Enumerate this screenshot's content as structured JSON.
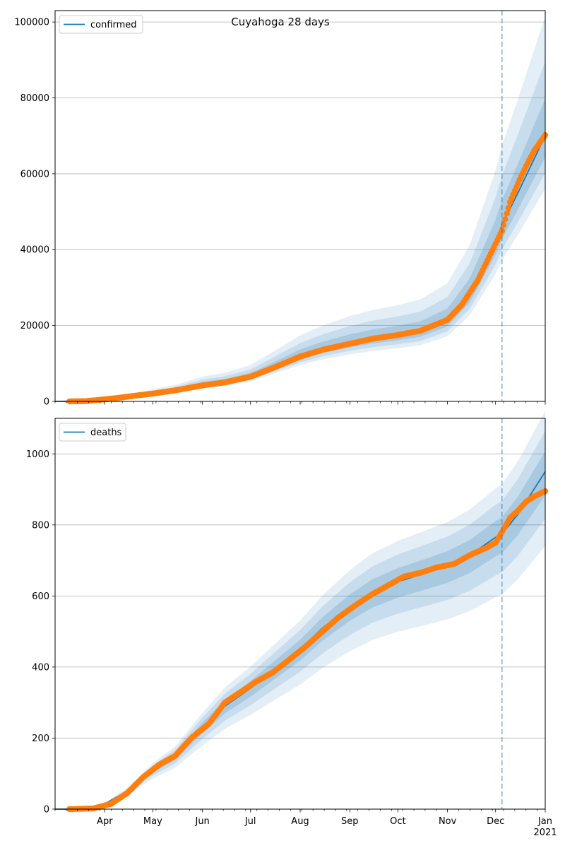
{
  "figure": {
    "title": "Cuyahoga 28 days"
  },
  "colors": {
    "line": "#1f77b4",
    "observed": "#ff7f0e",
    "band": "#1f77b4",
    "grid": "#b0b0b0",
    "forecast_line": "#1f77b4"
  },
  "x_axis": {
    "month_labels": [
      {
        "date": "2020-04-01",
        "label": "Apr"
      },
      {
        "date": "2020-05-01",
        "label": "May"
      },
      {
        "date": "2020-06-01",
        "label": "Jun"
      },
      {
        "date": "2020-07-01",
        "label": "Jul"
      },
      {
        "date": "2020-08-01",
        "label": "Aug"
      },
      {
        "date": "2020-09-01",
        "label": "Sep"
      },
      {
        "date": "2020-10-01",
        "label": "Oct"
      },
      {
        "date": "2020-11-01",
        "label": "Nov"
      },
      {
        "date": "2020-12-01",
        "label": "Dec"
      },
      {
        "date": "2021-01-01",
        "label": "Jan"
      }
    ],
    "year_label": "2021"
  },
  "chart_data": [
    {
      "type": "line",
      "legend": {
        "label": "confirmed",
        "placement": "top-left"
      },
      "xlim": [
        "2020-03-01",
        "2021-01-01"
      ],
      "ylim": [
        0,
        103000
      ],
      "yticks": [
        0,
        20000,
        40000,
        60000,
        80000,
        100000
      ],
      "forecast_start": "2020-12-05",
      "grid": "horizontal",
      "model_mean": [
        [
          "2020-03-01",
          0
        ],
        [
          "2020-03-20",
          100
        ],
        [
          "2020-04-01",
          600
        ],
        [
          "2020-04-15",
          1200
        ],
        [
          "2020-05-01",
          2200
        ],
        [
          "2020-05-15",
          3000
        ],
        [
          "2020-06-01",
          4500
        ],
        [
          "2020-06-15",
          5200
        ],
        [
          "2020-07-01",
          6600
        ],
        [
          "2020-07-15",
          9000
        ],
        [
          "2020-08-01",
          12000
        ],
        [
          "2020-08-15",
          13800
        ],
        [
          "2020-09-01",
          15500
        ],
        [
          "2020-09-15",
          16600
        ],
        [
          "2020-10-01",
          17500
        ],
        [
          "2020-10-15",
          18500
        ],
        [
          "2020-11-01",
          21500
        ],
        [
          "2020-11-15",
          28500
        ],
        [
          "2020-12-01",
          42000
        ],
        [
          "2020-12-05",
          46500
        ],
        [
          "2020-12-15",
          55000
        ],
        [
          "2021-01-01",
          70000
        ]
      ],
      "bands": [
        {
          "opacity": 0.12,
          "lower_factor": 0.8,
          "upper_factor": 1.45
        },
        {
          "opacity": 0.15,
          "lower_factor": 0.86,
          "upper_factor": 1.28
        },
        {
          "opacity": 0.18,
          "lower_factor": 0.92,
          "upper_factor": 1.14
        }
      ],
      "observed": [
        [
          "2020-03-10",
          0
        ],
        [
          "2020-03-20",
          60
        ],
        [
          "2020-03-31",
          500
        ],
        [
          "2020-04-10",
          950
        ],
        [
          "2020-04-20",
          1500
        ],
        [
          "2020-05-01",
          2050
        ],
        [
          "2020-05-15",
          2900
        ],
        [
          "2020-06-01",
          4200
        ],
        [
          "2020-06-15",
          5000
        ],
        [
          "2020-07-01",
          6500
        ],
        [
          "2020-07-15",
          8800
        ],
        [
          "2020-08-01",
          11800
        ],
        [
          "2020-08-15",
          13600
        ],
        [
          "2020-09-01",
          15200
        ],
        [
          "2020-09-15",
          16500
        ],
        [
          "2020-10-01",
          17500
        ],
        [
          "2020-10-15",
          18600
        ],
        [
          "2020-11-01",
          21500
        ],
        [
          "2020-11-10",
          25500
        ],
        [
          "2020-11-20",
          32000
        ],
        [
          "2020-11-28",
          39000
        ],
        [
          "2020-12-05",
          45000
        ],
        [
          "2020-12-10",
          52500
        ],
        [
          "2020-12-15",
          57500
        ],
        [
          "2020-12-20",
          62000
        ],
        [
          "2020-12-25",
          66000
        ],
        [
          "2021-01-01",
          70200
        ]
      ]
    },
    {
      "type": "line",
      "legend": {
        "label": "deaths",
        "placement": "top-left"
      },
      "xlim": [
        "2020-03-01",
        "2021-01-01"
      ],
      "ylim": [
        0,
        1100
      ],
      "yticks": [
        0,
        200,
        400,
        600,
        800,
        1000
      ],
      "forecast_start": "2020-12-05",
      "grid": "horizontal",
      "model_mean": [
        [
          "2020-03-01",
          0
        ],
        [
          "2020-03-20",
          0
        ],
        [
          "2020-04-01",
          15
        ],
        [
          "2020-04-15",
          50
        ],
        [
          "2020-05-01",
          110
        ],
        [
          "2020-05-15",
          150
        ],
        [
          "2020-06-01",
          230
        ],
        [
          "2020-06-15",
          290
        ],
        [
          "2020-07-01",
          340
        ],
        [
          "2020-07-15",
          390
        ],
        [
          "2020-08-01",
          450
        ],
        [
          "2020-08-15",
          510
        ],
        [
          "2020-09-01",
          570
        ],
        [
          "2020-09-15",
          610
        ],
        [
          "2020-10-01",
          640
        ],
        [
          "2020-10-15",
          660
        ],
        [
          "2020-11-01",
          685
        ],
        [
          "2020-11-15",
          715
        ],
        [
          "2020-12-01",
          765
        ],
        [
          "2020-12-05",
          775
        ],
        [
          "2020-12-15",
          830
        ],
        [
          "2021-01-01",
          950
        ]
      ],
      "bands": [
        {
          "opacity": 0.12,
          "lower_factor": 0.78,
          "upper_factor": 1.18
        },
        {
          "opacity": 0.15,
          "lower_factor": 0.86,
          "upper_factor": 1.12
        },
        {
          "opacity": 0.18,
          "lower_factor": 0.93,
          "upper_factor": 1.06
        }
      ],
      "observed": [
        [
          "2020-03-10",
          0
        ],
        [
          "2020-03-25",
          2
        ],
        [
          "2020-04-05",
          15
        ],
        [
          "2020-04-15",
          45
        ],
        [
          "2020-04-25",
          90
        ],
        [
          "2020-05-05",
          125
        ],
        [
          "2020-05-15",
          150
        ],
        [
          "2020-05-25",
          200
        ],
        [
          "2020-06-05",
          240
        ],
        [
          "2020-06-15",
          300
        ],
        [
          "2020-06-25",
          330
        ],
        [
          "2020-07-05",
          360
        ],
        [
          "2020-07-15",
          385
        ],
        [
          "2020-07-25",
          420
        ],
        [
          "2020-08-05",
          460
        ],
        [
          "2020-08-15",
          500
        ],
        [
          "2020-08-25",
          540
        ],
        [
          "2020-09-05",
          575
        ],
        [
          "2020-09-15",
          605
        ],
        [
          "2020-09-25",
          630
        ],
        [
          "2020-10-05",
          655
        ],
        [
          "2020-10-15",
          665
        ],
        [
          "2020-10-25",
          680
        ],
        [
          "2020-11-05",
          690
        ],
        [
          "2020-11-15",
          715
        ],
        [
          "2020-11-25",
          735
        ],
        [
          "2020-12-01",
          750
        ],
        [
          "2020-12-05",
          780
        ],
        [
          "2020-12-10",
          820
        ],
        [
          "2020-12-15",
          840
        ],
        [
          "2020-12-20",
          865
        ],
        [
          "2020-12-25",
          880
        ],
        [
          "2021-01-01",
          895
        ]
      ]
    }
  ]
}
